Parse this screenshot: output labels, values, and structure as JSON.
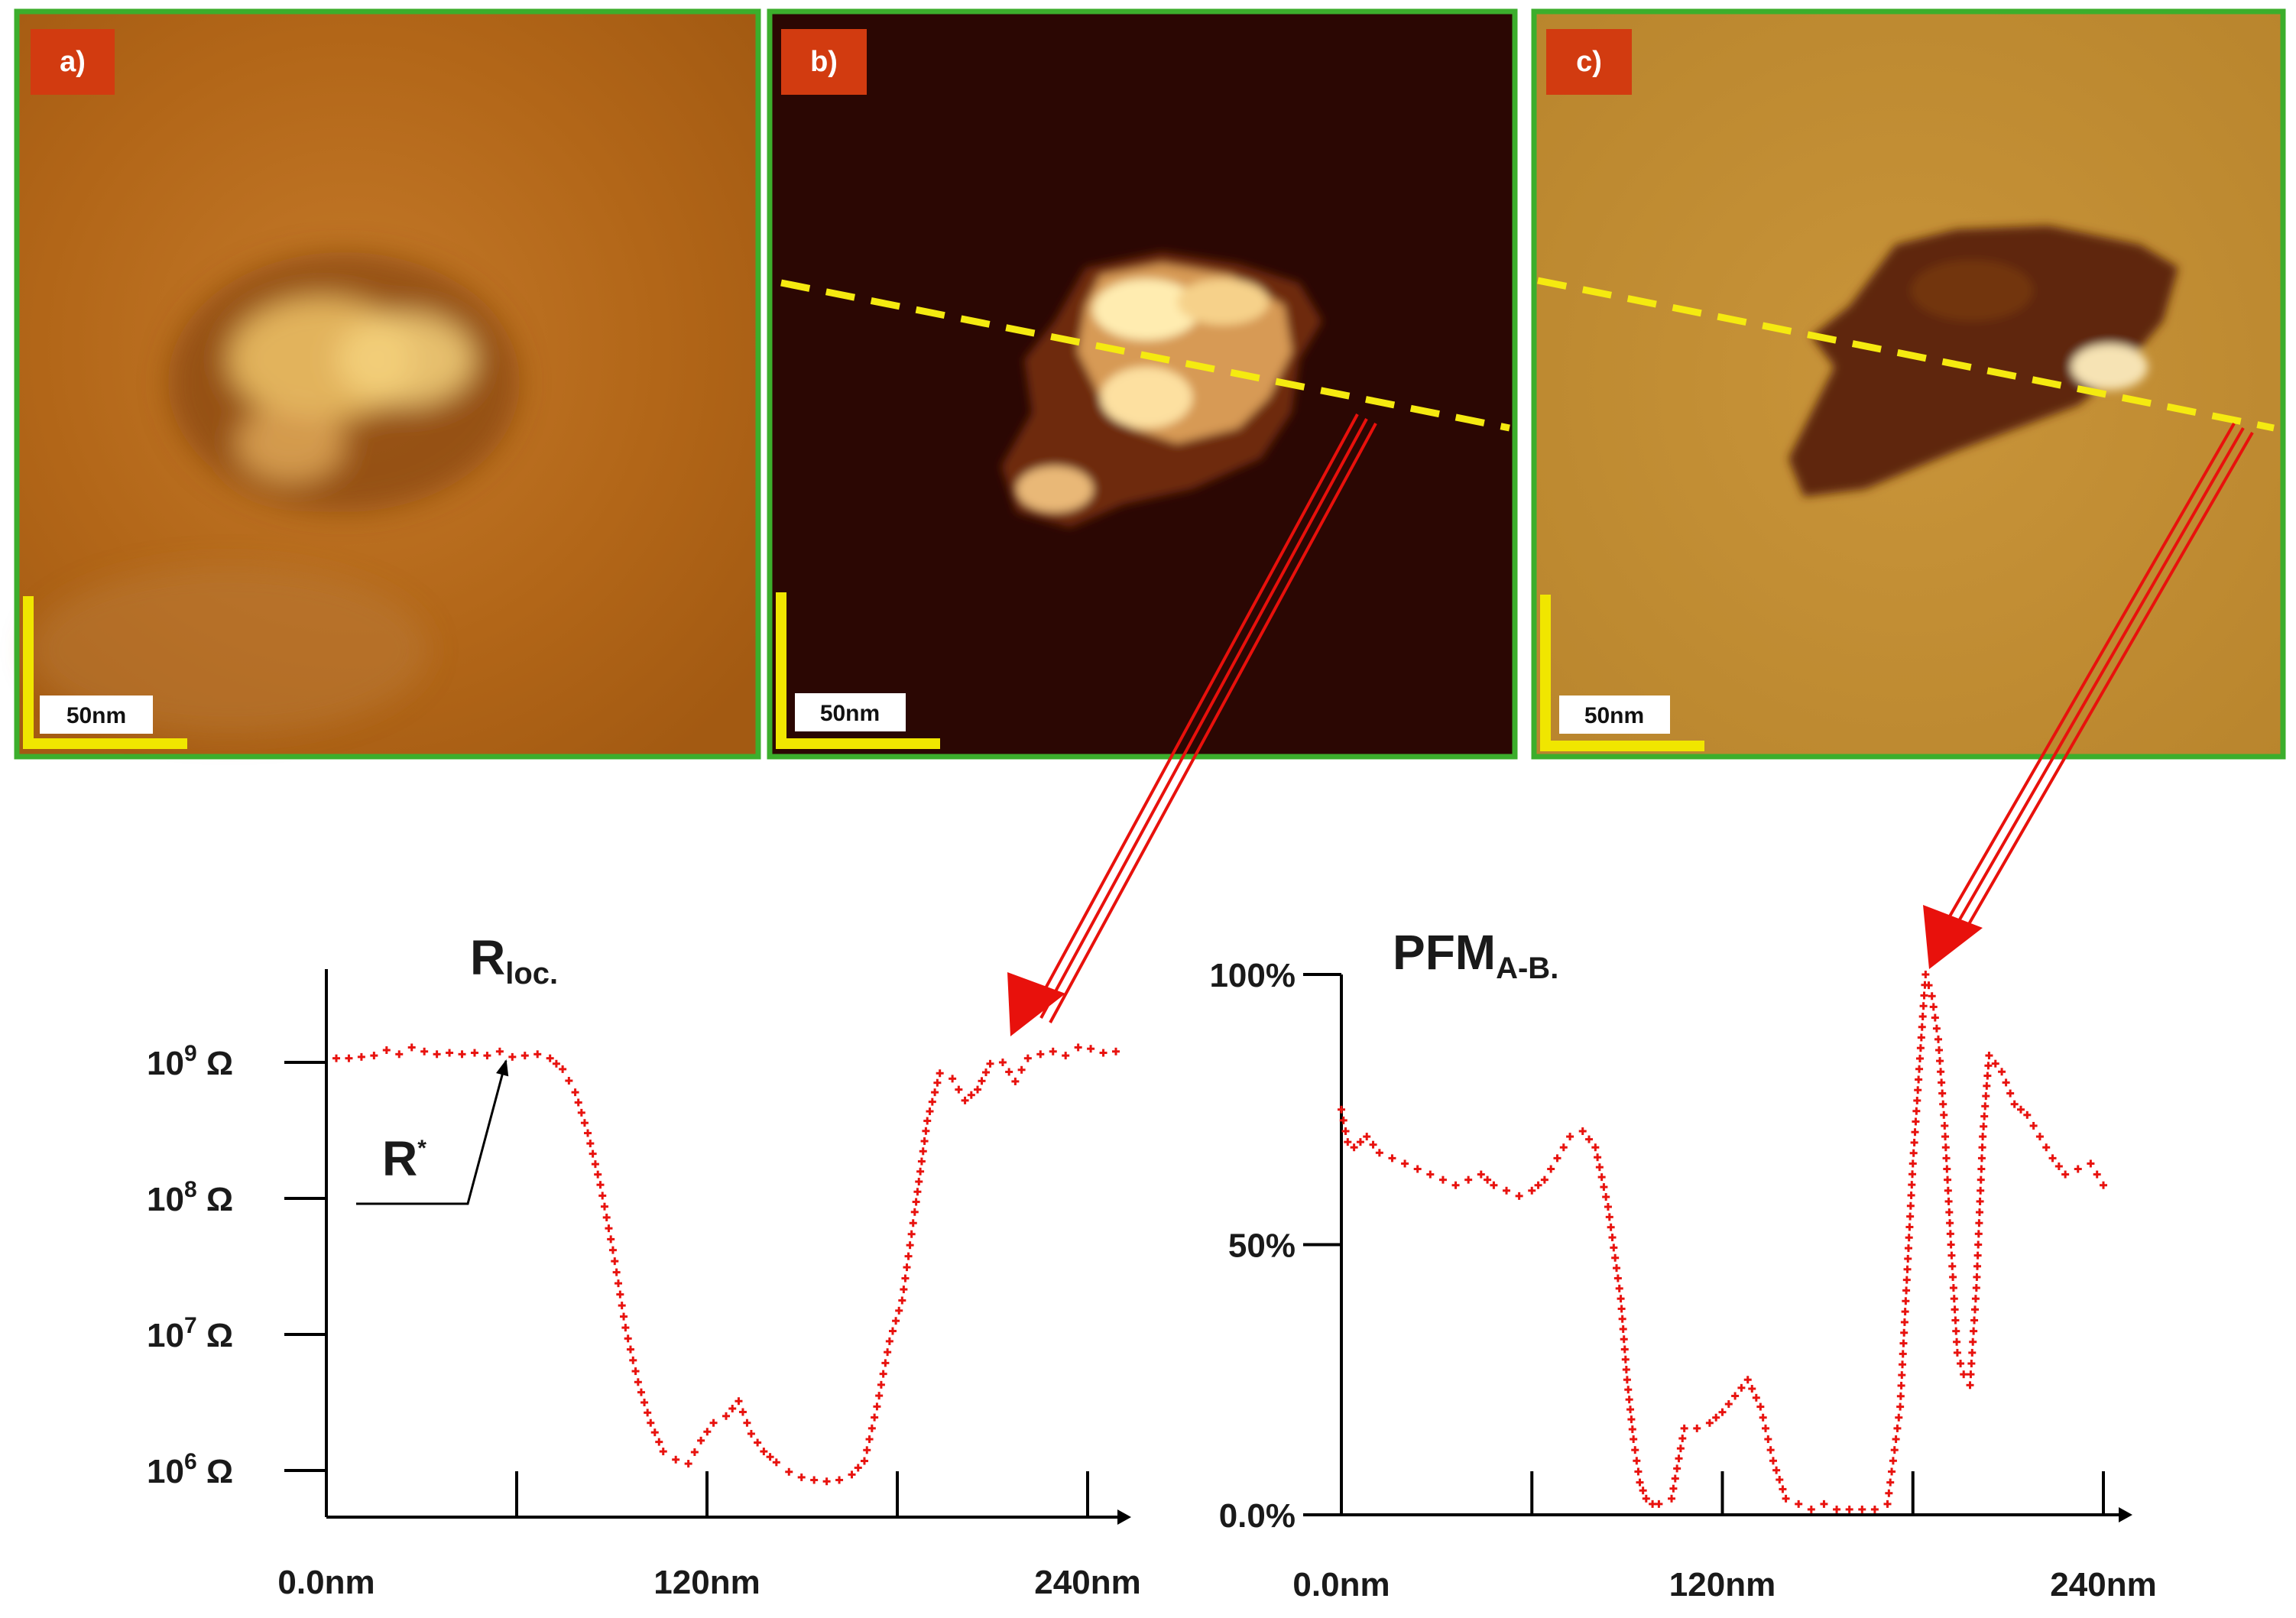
{
  "panels": [
    {
      "label": "a)",
      "scale_bar": "50nm"
    },
    {
      "label": "b)",
      "scale_bar": "50nm"
    },
    {
      "label": "c)",
      "scale_bar": "50nm"
    }
  ],
  "colors": {
    "panel_label_bg": "#d23b10",
    "panel_border": "#3cae2c",
    "scale_bar": "#f0e600",
    "profile_line": "#f5ea10",
    "arrow": "#e8110c",
    "data_points": "#e8130f"
  },
  "annotation": {
    "text": "R",
    "superscript": "*"
  },
  "chart_data": [
    {
      "type": "scatter",
      "title_main": "R",
      "title_sub": "loc.",
      "xlabel": "",
      "ylabel": "",
      "scale": "log",
      "xlim": [
        0,
        250
      ],
      "ylim": [
        5.5,
        9.7
      ],
      "x_ticks": [
        0,
        60,
        120,
        180,
        240
      ],
      "x_tick_labels": [
        "0.0nm",
        "",
        "120nm",
        "",
        "240nm"
      ],
      "y_ticks": [
        6,
        7,
        8,
        9
      ],
      "y_tick_base": "10",
      "y_tick_exponents": [
        "6",
        "7",
        "8",
        "9"
      ],
      "y_tick_unit": "Ω",
      "series": [
        {
          "x": [
            0,
            4,
            8,
            12,
            16,
            20,
            24,
            28,
            32,
            36,
            40,
            44,
            48,
            52,
            56,
            60,
            64,
            68,
            72,
            76,
            80,
            84,
            88,
            92,
            96,
            100,
            104,
            108,
            112,
            116,
            120,
            124,
            128,
            132,
            136,
            140,
            144,
            148,
            152,
            156,
            160,
            164,
            168,
            172,
            176,
            180,
            184,
            188,
            192,
            196,
            200,
            204,
            208,
            212,
            216,
            220,
            224,
            228,
            232,
            236,
            240,
            244,
            248
          ],
          "y": [
            9.03,
            9.03,
            9.04,
            9.05,
            9.09,
            9.06,
            9.11,
            9.08,
            9.06,
            9.07,
            9.06,
            9.07,
            9.05,
            9.08,
            9.04,
            9.05,
            9.06,
            9.03,
            8.95,
            8.78,
            8.48,
            8.1,
            7.62,
            7.05,
            6.65,
            6.35,
            6.14,
            6.08,
            6.05,
            6.22,
            6.35,
            6.4,
            6.51,
            6.27,
            6.14,
            6.06,
            5.99,
            5.95,
            5.93,
            5.92,
            5.93,
            5.97,
            6.07,
            6.47,
            6.95,
            7.25,
            7.9,
            8.57,
            8.92,
            8.88,
            8.72,
            8.8,
            8.99,
            9.0,
            8.86,
            9.03,
            9.06,
            9.08,
            9.05,
            9.11,
            9.1,
            9.07,
            9.08
          ]
        }
      ],
      "annotation": {
        "label": "R*",
        "x": 58,
        "y": 9.0
      }
    },
    {
      "type": "scatter",
      "title_main": "PFM",
      "title_sub": "A-B.",
      "xlabel": "",
      "ylabel": "",
      "xlim": [
        0,
        250
      ],
      "ylim": [
        0,
        100
      ],
      "x_ticks": [
        0,
        60,
        120,
        180,
        240
      ],
      "x_tick_labels": [
        "0.0nm",
        "",
        "120nm",
        "",
        "240nm"
      ],
      "y_ticks": [
        0,
        50,
        100
      ],
      "y_tick_labels": [
        "0.0%",
        "50%",
        "100%"
      ],
      "series": [
        {
          "x": [
            0,
            2,
            4,
            8,
            12,
            16,
            20,
            24,
            28,
            32,
            36,
            40,
            44,
            48,
            52,
            56,
            60,
            64,
            68,
            72,
            76,
            80,
            84,
            88,
            90,
            92,
            94,
            96,
            98,
            100,
            104,
            108,
            112,
            116,
            120,
            124,
            128,
            132,
            136,
            140,
            144,
            148,
            152,
            156,
            160,
            164,
            168,
            172,
            176,
            180,
            184,
            186,
            188,
            190,
            192,
            194,
            196,
            198,
            200,
            202,
            204,
            208,
            212,
            216,
            220,
            224,
            228,
            232,
            236,
            240
          ],
          "y": [
            75,
            69,
            68,
            70,
            67,
            66,
            65,
            64,
            63,
            62,
            61,
            62,
            63,
            61,
            60,
            59,
            60,
            62,
            66,
            70,
            71,
            68,
            57,
            40,
            25,
            14,
            6,
            3,
            2,
            2,
            3,
            16,
            16,
            17,
            19,
            22,
            25,
            20,
            10,
            3,
            2,
            1,
            2,
            1,
            1,
            1,
            1,
            2,
            20,
            65,
            100,
            96,
            88,
            72,
            50,
            30,
            26,
            24,
            42,
            70,
            85,
            82,
            76,
            74,
            70,
            66,
            63,
            64,
            65,
            61
          ]
        }
      ]
    }
  ]
}
